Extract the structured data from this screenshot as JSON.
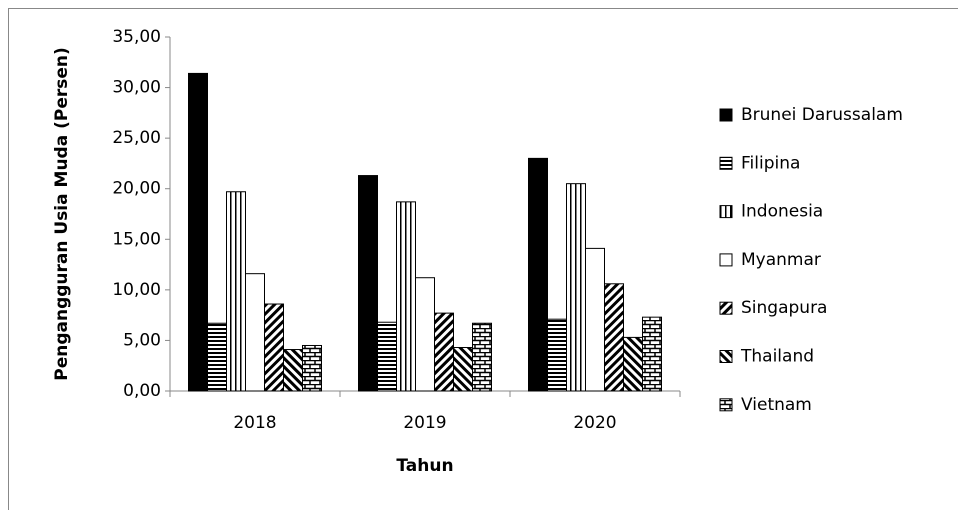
{
  "chart_data": {
    "type": "bar",
    "x_label": "Tahun",
    "y_label": "Pengangguran Usia Muda (Persen)",
    "categories": [
      "2018",
      "2019",
      "2020"
    ],
    "series": [
      {
        "name": "Brunei Darussalam",
        "color": "#000000",
        "pattern": "solid",
        "values": [
          31.4,
          21.3,
          23.0
        ]
      },
      {
        "name": "Filipina",
        "color": "#000000",
        "pattern": "horizontal",
        "values": [
          6.7,
          6.8,
          7.1
        ]
      },
      {
        "name": "Indonesia",
        "color": "#000000",
        "pattern": "vertical",
        "values": [
          19.7,
          18.7,
          20.5
        ]
      },
      {
        "name": "Myanmar",
        "color": "#000000",
        "pattern": "none",
        "values": [
          11.6,
          11.2,
          14.1
        ]
      },
      {
        "name": "Singapura",
        "color": "#000000",
        "pattern": "diagonal-back",
        "values": [
          8.6,
          7.7,
          10.6
        ]
      },
      {
        "name": "Thailand",
        "color": "#000000",
        "pattern": "diagonal",
        "values": [
          4.1,
          4.3,
          5.3
        ]
      },
      {
        "name": "Vietnam",
        "color": "#000000",
        "pattern": "brick",
        "values": [
          4.5,
          6.7,
          7.3
        ]
      }
    ],
    "ylim": [
      0,
      35
    ],
    "yticks": [
      {
        "value": 0,
        "label": "0,00"
      },
      {
        "value": 5,
        "label": "5,00"
      },
      {
        "value": 10,
        "label": "10,00"
      },
      {
        "value": 15,
        "label": "15,00"
      },
      {
        "value": 20,
        "label": "20,00"
      },
      {
        "value": 25,
        "label": "25,00"
      },
      {
        "value": 30,
        "label": "30,00"
      },
      {
        "value": 35,
        "label": "35,00"
      }
    ],
    "legend": "right"
  }
}
